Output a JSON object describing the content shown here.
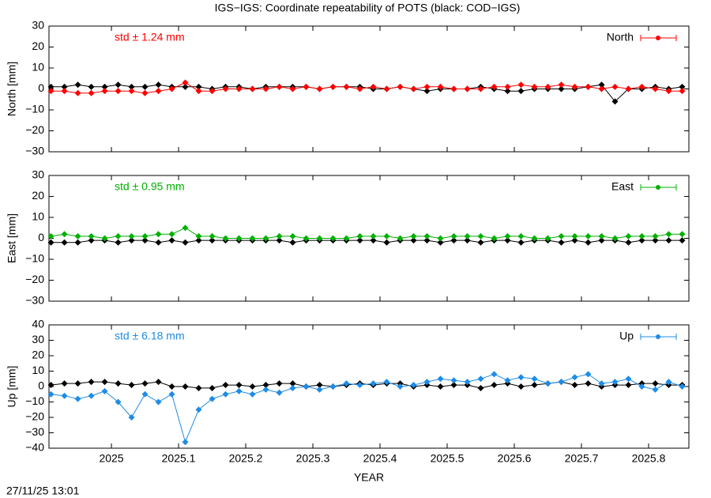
{
  "title": "IGS−IGS: Coordinate repeatability of POTS (black: COD−IGS)",
  "timestamp": "27/11/25 13:01",
  "chart_data": [
    {
      "type": "line",
      "ylabel": "North [mm]",
      "annotation": "std ± 1.24 mm",
      "x": [
        2024.91,
        2024.93,
        2024.95,
        2024.97,
        2024.99,
        2025.01,
        2025.03,
        2025.05,
        2025.07,
        2025.09,
        2025.11,
        2025.13,
        2025.15,
        2025.17,
        2025.19,
        2025.21,
        2025.23,
        2025.25,
        2025.27,
        2025.29,
        2025.31,
        2025.33,
        2025.35,
        2025.37,
        2025.39,
        2025.41,
        2025.43,
        2025.45,
        2025.47,
        2025.49,
        2025.51,
        2025.53,
        2025.55,
        2025.57,
        2025.59,
        2025.61,
        2025.63,
        2025.65,
        2025.67,
        2025.69,
        2025.71,
        2025.73,
        2025.75,
        2025.77,
        2025.79,
        2025.81,
        2025.83,
        2025.85
      ],
      "series": [
        {
          "color": "#000000",
          "values": [
            1,
            1,
            2,
            1,
            1,
            2,
            1,
            1,
            2,
            1,
            1,
            1,
            0,
            1,
            1,
            0,
            1,
            1,
            1,
            1,
            0,
            1,
            1,
            1,
            0,
            0,
            1,
            0,
            -1,
            0,
            0,
            0,
            1,
            0,
            -1,
            -1,
            0,
            0,
            0,
            0,
            1,
            2,
            -6,
            0,
            0,
            1,
            0,
            1
          ]
        },
        {
          "name": "North",
          "color": "#ff0000",
          "values": [
            -1,
            -1,
            -2,
            -2,
            -1,
            -1,
            -1,
            -2,
            -1,
            0,
            3,
            -1,
            -1,
            0,
            0,
            0,
            0,
            1,
            0,
            1,
            0,
            1,
            1,
            0,
            1,
            0,
            1,
            0,
            1,
            1,
            0,
            0,
            0,
            1,
            1,
            2,
            1,
            1,
            2,
            1,
            1,
            0,
            1,
            0,
            1,
            0,
            -1,
            -1
          ]
        }
      ],
      "xlim": [
        2024.907,
        2025.86
      ],
      "xticks": [
        2025,
        2025.1,
        2025.2,
        2025.3,
        2025.4,
        2025.5,
        2025.6,
        2025.7,
        2025.8
      ],
      "ylim": [
        -30,
        30
      ],
      "yticks": [
        {
          "value": -30,
          "label": "−30"
        },
        {
          "value": -20,
          "label": "−20"
        },
        {
          "value": -10,
          "label": "−10"
        },
        0,
        10,
        20,
        30
      ]
    },
    {
      "type": "line",
      "ylabel": "East [mm]",
      "annotation": "std ± 0.95 mm",
      "x": [
        2024.91,
        2024.93,
        2024.95,
        2024.97,
        2024.99,
        2025.01,
        2025.03,
        2025.05,
        2025.07,
        2025.09,
        2025.11,
        2025.13,
        2025.15,
        2025.17,
        2025.19,
        2025.21,
        2025.23,
        2025.25,
        2025.27,
        2025.29,
        2025.31,
        2025.33,
        2025.35,
        2025.37,
        2025.39,
        2025.41,
        2025.43,
        2025.45,
        2025.47,
        2025.49,
        2025.51,
        2025.53,
        2025.55,
        2025.57,
        2025.59,
        2025.61,
        2025.63,
        2025.65,
        2025.67,
        2025.69,
        2025.71,
        2025.73,
        2025.75,
        2025.77,
        2025.79,
        2025.81,
        2025.83,
        2025.85
      ],
      "series": [
        {
          "color": "#000000",
          "values": [
            -2,
            -2,
            -2,
            -1,
            -1,
            -2,
            -1,
            -1,
            -2,
            -1,
            -2,
            -1,
            -1,
            -1,
            -1,
            -1,
            -1,
            -1,
            -2,
            -1,
            -1,
            -1,
            -1,
            -1,
            -1,
            -2,
            -1,
            -1,
            -1,
            -2,
            -1,
            -1,
            -2,
            -1,
            -1,
            -2,
            -1,
            -1,
            -2,
            -1,
            -2,
            -1,
            -1,
            -2,
            -1,
            -1,
            -1,
            -1
          ]
        },
        {
          "name": "East",
          "color": "#00b000",
          "values": [
            1,
            2,
            1,
            1,
            0,
            1,
            1,
            1,
            2,
            2,
            5,
            1,
            1,
            0,
            0,
            0,
            0,
            1,
            1,
            0,
            0,
            0,
            0,
            1,
            1,
            1,
            0,
            1,
            1,
            0,
            1,
            1,
            1,
            0,
            1,
            1,
            0,
            0,
            1,
            1,
            1,
            1,
            0,
            1,
            1,
            1,
            2,
            2
          ]
        }
      ],
      "xlim": [
        2024.907,
        2025.86
      ],
      "xticks": [
        2025,
        2025.1,
        2025.2,
        2025.3,
        2025.4,
        2025.5,
        2025.6,
        2025.7,
        2025.8
      ],
      "ylim": [
        -30,
        30
      ],
      "yticks": [
        {
          "value": -30,
          "label": "−30"
        },
        {
          "value": -20,
          "label": "−20"
        },
        {
          "value": -10,
          "label": "−10"
        },
        0,
        10,
        20,
        30
      ]
    },
    {
      "type": "line",
      "ylabel": "Up [mm]",
      "xlabel": "YEAR",
      "annotation": "std ± 6.18 mm",
      "x": [
        2024.91,
        2024.93,
        2024.95,
        2024.97,
        2024.99,
        2025.01,
        2025.03,
        2025.05,
        2025.07,
        2025.09,
        2025.11,
        2025.13,
        2025.15,
        2025.17,
        2025.19,
        2025.21,
        2025.23,
        2025.25,
        2025.27,
        2025.29,
        2025.31,
        2025.33,
        2025.35,
        2025.37,
        2025.39,
        2025.41,
        2025.43,
        2025.45,
        2025.47,
        2025.49,
        2025.51,
        2025.53,
        2025.55,
        2025.57,
        2025.59,
        2025.61,
        2025.63,
        2025.65,
        2025.67,
        2025.69,
        2025.71,
        2025.73,
        2025.75,
        2025.77,
        2025.79,
        2025.81,
        2025.83,
        2025.85
      ],
      "series": [
        {
          "color": "#000000",
          "values": [
            1,
            2,
            2,
            3,
            3,
            2,
            1,
            2,
            3,
            0,
            0,
            -1,
            -1,
            1,
            1,
            0,
            1,
            2,
            2,
            0,
            1,
            0,
            1,
            2,
            1,
            2,
            2,
            0,
            1,
            0,
            1,
            1,
            -1,
            1,
            2,
            0,
            1,
            2,
            3,
            1,
            2,
            0,
            1,
            1,
            2,
            2,
            1,
            1
          ]
        },
        {
          "name": "Up",
          "color": "#1e8ce6",
          "values": [
            -5,
            -6,
            -8,
            -6,
            -3,
            -10,
            -20,
            -5,
            -10,
            -5,
            -36,
            -15,
            -8,
            -5,
            -3,
            -5,
            -2,
            -4,
            -1,
            0,
            -2,
            0,
            2,
            1,
            2,
            3,
            0,
            1,
            3,
            5,
            4,
            3,
            5,
            8,
            4,
            6,
            5,
            2,
            3,
            6,
            8,
            2,
            3,
            5,
            0,
            -2,
            3,
            0
          ]
        }
      ],
      "xlim": [
        2024.907,
        2025.86
      ],
      "xticks": [
        2025,
        2025.1,
        2025.2,
        2025.3,
        2025.4,
        2025.5,
        2025.6,
        2025.7,
        2025.8
      ],
      "ylim": [
        -40,
        40
      ],
      "yticks": [
        {
          "value": -40,
          "label": "−40"
        },
        {
          "value": -30,
          "label": "−30"
        },
        {
          "value": -20,
          "label": "−20"
        },
        {
          "value": -10,
          "label": "−10"
        },
        0,
        10,
        20,
        30,
        40
      ]
    }
  ]
}
